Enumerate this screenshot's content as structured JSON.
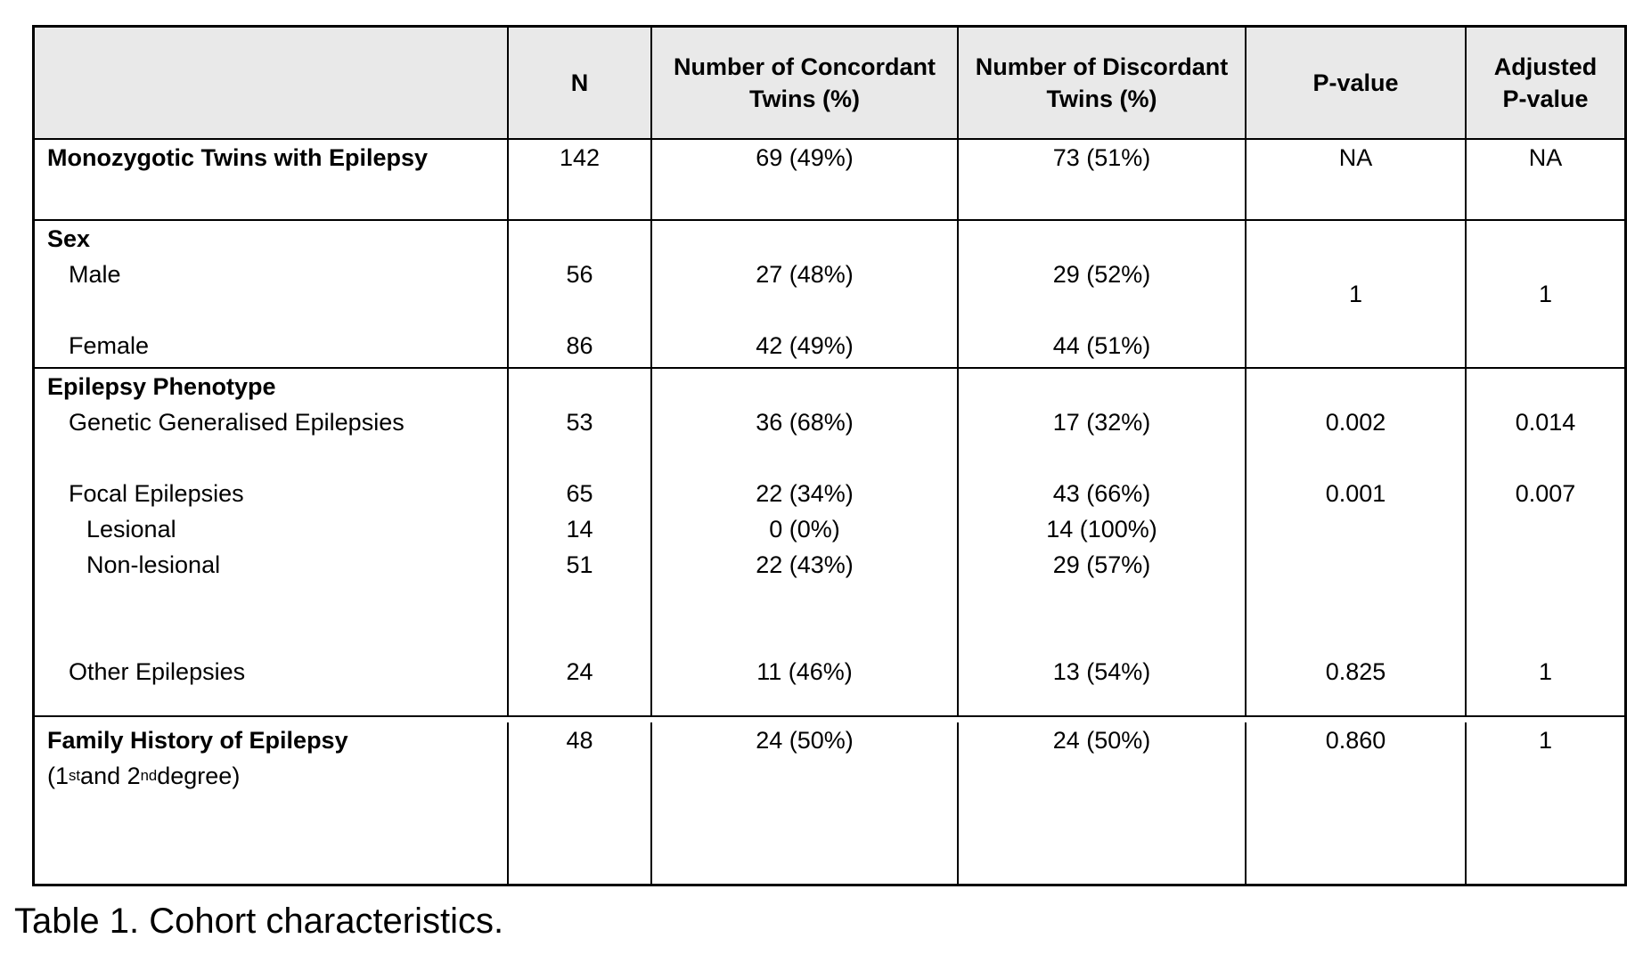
{
  "caption": "Table 1. Cohort characteristics.",
  "table": {
    "columns": [
      "",
      "N",
      "Number of Concordant Twins (%)",
      "Number of Discordant Twins (%)",
      "P-value",
      "Adjusted P-value"
    ],
    "groups": [
      {
        "name": "monozygotic",
        "lines": [
          {
            "label": "Monozygotic Twins with Epilepsy",
            "bold": true,
            "cells": [
              "142",
              "69 (49%)",
              "73 (51%)",
              "NA",
              "NA"
            ]
          }
        ]
      },
      {
        "name": "sex",
        "p_span": "1",
        "adj_span": "1",
        "lines": [
          {
            "label": "Sex",
            "bold": true,
            "cells": [
              "",
              "",
              "",
              "",
              ""
            ]
          },
          {
            "label": "Male",
            "indent": 1,
            "cells": [
              "56",
              "27 (48%)",
              "29 (52%)",
              "",
              ""
            ]
          },
          {
            "label": "",
            "cells": [
              "",
              "",
              "",
              "",
              ""
            ]
          },
          {
            "label": "Female",
            "indent": 1,
            "cells": [
              "86",
              "42 (49%)",
              "44 (51%)",
              "",
              ""
            ]
          }
        ]
      },
      {
        "name": "phenotype",
        "lines": [
          {
            "label": "Epilepsy Phenotype",
            "bold": true,
            "cells": [
              "",
              "",
              "",
              "",
              ""
            ]
          },
          {
            "label": "Genetic Generalised Epilepsies",
            "indent": 1,
            "cells": [
              "53",
              "36 (68%)",
              "17 (32%)",
              "0.002",
              "0.014"
            ]
          },
          {
            "label": "",
            "cells": [
              "",
              "",
              "",
              "",
              ""
            ]
          },
          {
            "label": "Focal Epilepsies",
            "indent": 1,
            "cells": [
              "65",
              "22 (34%)",
              "43 (66%)",
              "0.001",
              "0.007"
            ]
          },
          {
            "label": "Lesional",
            "indent": 2,
            "cells": [
              "14",
              "0 (0%)",
              "14 (100%)",
              "",
              ""
            ]
          },
          {
            "label": "Non-lesional",
            "indent": 2,
            "cells": [
              "51",
              "22 (43%)",
              "29 (57%)",
              "",
              ""
            ]
          },
          {
            "label": "",
            "cells": [
              "",
              "",
              "",
              "",
              ""
            ]
          },
          {
            "label": "",
            "cells": [
              "",
              "",
              "",
              "",
              ""
            ]
          },
          {
            "label": "Other Epilepsies",
            "indent": 1,
            "cells": [
              "24",
              "11 (46%)",
              "13 (54%)",
              "0.825",
              "1"
            ]
          }
        ]
      },
      {
        "name": "family-history",
        "lines": [
          {
            "label": "Family History of Epilepsy",
            "bold": true,
            "cells": [
              "48",
              "24 (50%)",
              "24 (50%)",
              "0.860",
              "1"
            ]
          },
          {
            "label_parts": [
              {
                "t": "(1"
              },
              {
                "t": "st",
                "sup": true
              },
              {
                "t": " and 2"
              },
              {
                "t": "nd",
                "sup": true
              },
              {
                "t": " degree)"
              }
            ],
            "cells": [
              "",
              "",
              "",
              "",
              ""
            ]
          }
        ]
      }
    ]
  }
}
